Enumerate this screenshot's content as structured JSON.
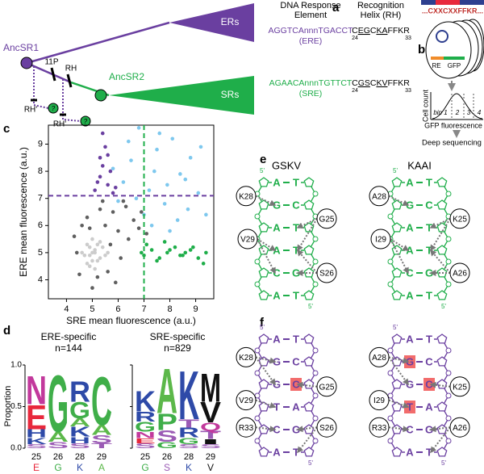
{
  "panel_labels": [
    "a",
    "b",
    "c",
    "d",
    "e",
    "f"
  ],
  "panel_a": {
    "tree": {
      "ancsr1": "AncSR1",
      "ancsr2": "AncSR2",
      "ers": "ERs",
      "srs": "SRs",
      "p11": "11P",
      "rh": "RH",
      "rh_prime": [
        "RH'",
        "RH'"
      ],
      "unknown": [
        "?",
        "?"
      ]
    },
    "headers": [
      [
        "DNA Response",
        "Element"
      ],
      [
        "Recognition",
        "Helix (RH)"
      ]
    ],
    "rows": [
      {
        "element": "AGGTCAnnnTGACCT",
        "element_label": "(ERE)",
        "helix": [
          "C",
          "EG",
          "C",
          "KA",
          "FFKR"
        ],
        "helix_start": "24",
        "helix_end": "33",
        "color": "#6a3fa0"
      },
      {
        "element": "AGAACAnnnTGTTCT",
        "element_label": "(SRE)",
        "helix": [
          "C",
          "GS",
          "C",
          "KV",
          "FFKR"
        ],
        "helix_start": "24",
        "helix_end": "33",
        "color": "#1fae4a"
      }
    ]
  },
  "panel_b": {
    "motif": "...CXXCXXFFKR...",
    "reporter": [
      "RE",
      "GFP"
    ],
    "bins": [
      "bin 1",
      "2",
      "3",
      "4"
    ],
    "y_label": "Cell count",
    "x_label": "GFP fluorescence",
    "step": "Deep sequencing"
  },
  "chart_data": {
    "type": "scatter",
    "x_label": "SRE mean fluorescence (a.u.)",
    "y_label": "ERE mean fluorescence (a.u.)",
    "xlim": [
      3.3,
      9.7
    ],
    "ylim": [
      3.3,
      9.7
    ],
    "xticks": [
      4,
      5,
      6,
      7,
      8,
      9
    ],
    "yticks": [
      4,
      5,
      6,
      7,
      8,
      9
    ],
    "thresholds": {
      "x": 7,
      "y": 7.1,
      "x_color": "#1fae4a",
      "y_color": "#6a3fa0"
    },
    "series": [
      {
        "color": "#5f5f5f",
        "x": [
          4.3,
          4.5,
          4.6,
          5.8,
          6.0,
          6.2,
          5.6,
          5.9,
          6.4,
          6.6,
          6.8,
          5.0,
          5.3,
          4.9,
          5.5,
          6.1,
          6.9,
          5.7,
          4.4,
          5.2,
          6.3,
          7.1,
          5.4,
          4.8
        ],
        "y": [
          5.6,
          4.2,
          6.0,
          6.5,
          5.8,
          6.9,
          4.3,
          3.9,
          5.5,
          6.2,
          5.9,
          3.7,
          6.6,
          5.9,
          6.0,
          4.8,
          6.5,
          5.3,
          5.0,
          4.1,
          6.7,
          5.7,
          6.9,
          6.3
        ]
      },
      {
        "color": "#cccccc",
        "x": [
          4.7,
          4.9,
          5.0,
          5.1,
          5.2,
          5.3,
          4.8,
          5.0,
          5.1,
          5.4,
          5.5,
          4.6,
          4.9,
          5.2,
          5.0,
          5.3,
          4.8,
          5.1,
          5.6,
          4.9
        ],
        "y": [
          4.9,
          5.2,
          4.7,
          5.0,
          5.3,
          4.8,
          4.6,
          5.5,
          5.1,
          5.2,
          4.9,
          5.0,
          4.5,
          4.7,
          5.0,
          5.4,
          5.3,
          4.4,
          5.0,
          4.9
        ]
      },
      {
        "color": "#6a3fa0",
        "x": [
          5.1,
          5.3,
          5.4,
          5.6,
          5.5,
          5.8,
          5.2,
          5.7,
          5.4,
          5.9,
          5.3,
          5.6
        ],
        "y": [
          7.3,
          7.8,
          8.2,
          7.5,
          8.9,
          7.2,
          7.6,
          8.0,
          9.4,
          7.4,
          8.5,
          8.6
        ]
      },
      {
        "color": "#7ec8ee",
        "x": [
          6.2,
          6.5,
          6.8,
          7.2,
          7.5,
          7.8,
          8.1,
          8.4,
          8.8,
          9.1,
          6.0,
          6.4,
          7.0,
          7.4,
          7.9,
          8.3,
          8.7,
          9.2,
          6.7,
          7.6,
          8.0,
          8.6,
          5.8,
          7.3,
          9.4
        ],
        "y": [
          7.6,
          8.4,
          9.6,
          7.3,
          8.8,
          6.8,
          9.2,
          7.9,
          8.5,
          7.2,
          6.9,
          9.1,
          6.4,
          8.0,
          7.5,
          6.2,
          6.6,
          8.9,
          7.0,
          9.4,
          5.8,
          7.7,
          8.1,
          6.0,
          6.4
        ]
      },
      {
        "color": "#1fae4a",
        "x": [
          7.0,
          7.3,
          7.6,
          7.9,
          8.2,
          8.5,
          8.8,
          9.1,
          9.4,
          7.1,
          7.5,
          8.0,
          8.4,
          8.9,
          9.3,
          6.9,
          7.8,
          8.6
        ],
        "y": [
          4.9,
          5.1,
          4.8,
          5.0,
          5.2,
          4.9,
          5.1,
          4.8,
          5.0,
          5.3,
          4.7,
          5.1,
          4.9,
          5.2,
          4.6,
          5.0,
          5.4,
          5.0
        ]
      }
    ]
  },
  "panel_d": {
    "y_label": "Proportion",
    "ylim": [
      0,
      1
    ],
    "yticks": [
      {
        "value": 0,
        "label": "0.0"
      },
      {
        "value": 0.5,
        "label": "0.5"
      },
      {
        "value": 1,
        "label": "1.0"
      }
    ],
    "letter_colors": {
      "A": "#5cb84a",
      "C": "#3fae49",
      "G": "#3fae49",
      "P": "#3fae49",
      "S": "#9b5bb5",
      "T": "#9b5bb5",
      "N": "#c2399c",
      "Q": "#c2399c",
      "E": "#e8283c",
      "D": "#e8283c",
      "K": "#2e4aa8",
      "R": "#2e4aa8",
      "H": "#2e4aa8",
      "M": "#111111",
      "V": "#111111",
      "I": "#111111"
    },
    "logos": [
      {
        "title": "ERE-specific",
        "n": "n=144",
        "positions": [
          "25",
          "26",
          "28",
          "29"
        ],
        "consensus": [
          "E",
          "G",
          "K",
          "A"
        ],
        "columns": [
          [
            {
              "letter": "S",
              "height": 0.05
            },
            {
              "letter": "K",
              "height": 0.08
            },
            {
              "letter": "H",
              "height": 0.1
            },
            {
              "letter": "E",
              "height": 0.3
            },
            {
              "letter": "N",
              "height": 0.35
            }
          ],
          [
            {
              "letter": "S",
              "height": 0.08
            },
            {
              "letter": "A",
              "height": 0.12
            },
            {
              "letter": "G",
              "height": 0.7
            }
          ],
          [
            {
              "letter": "S",
              "height": 0.06
            },
            {
              "letter": "H",
              "height": 0.08
            },
            {
              "letter": "K",
              "height": 0.12
            },
            {
              "letter": "A",
              "height": 0.1
            },
            {
              "letter": "G",
              "height": 0.2
            },
            {
              "letter": "R",
              "height": 0.25
            }
          ],
          [
            {
              "letter": "T",
              "height": 0.06
            },
            {
              "letter": "S",
              "height": 0.1
            },
            {
              "letter": "A",
              "height": 0.12
            },
            {
              "letter": "C",
              "height": 0.6
            }
          ]
        ]
      },
      {
        "title": "SRE-specific",
        "n": "n=829",
        "positions": [
          "25",
          "26",
          "28",
          "29"
        ],
        "consensus": [
          "G",
          "S",
          "K",
          "V"
        ],
        "columns": [
          [
            {
              "letter": "S",
              "height": 0.06
            },
            {
              "letter": "E",
              "height": 0.06
            },
            {
              "letter": "N",
              "height": 0.08
            },
            {
              "letter": "G",
              "height": 0.12
            },
            {
              "letter": "R",
              "height": 0.12
            },
            {
              "letter": "K",
              "height": 0.25
            }
          ],
          [
            {
              "letter": "G",
              "height": 0.08
            },
            {
              "letter": "S",
              "height": 0.14
            },
            {
              "letter": "P",
              "height": 0.2
            },
            {
              "letter": "A",
              "height": 0.55
            }
          ],
          [
            {
              "letter": "S",
              "height": 0.05
            },
            {
              "letter": "G",
              "height": 0.08
            },
            {
              "letter": "R",
              "height": 0.12
            },
            {
              "letter": "T",
              "height": 0.1
            },
            {
              "letter": "K",
              "height": 0.6
            }
          ],
          [
            {
              "letter": "S",
              "height": 0.05
            },
            {
              "letter": "I",
              "height": 0.06
            },
            {
              "letter": "T",
              "height": 0.1
            },
            {
              "letter": "Q",
              "height": 0.1
            },
            {
              "letter": "V",
              "height": 0.25
            },
            {
              "letter": "M",
              "height": 0.35
            }
          ]
        ]
      }
    ]
  },
  "panel_e": {
    "color": "#1fae4a",
    "strand_end": "5'",
    "ladders": [
      {
        "title": "GSKV",
        "pairs": [
          [
            "A",
            "T"
          ],
          [
            "G",
            "C"
          ],
          [
            "A",
            "T"
          ],
          [
            "A",
            "T"
          ],
          [
            "C",
            "G"
          ],
          [
            "A",
            "T"
          ]
        ],
        "residues": [
          "K28",
          "V29",
          "G25",
          "S26"
        ]
      },
      {
        "title": "KAAI",
        "pairs": [
          [
            "A",
            "T"
          ],
          [
            "G",
            "C"
          ],
          [
            "A",
            "T"
          ],
          [
            "A",
            "T"
          ],
          [
            "C",
            "G"
          ],
          [
            "A",
            "T"
          ]
        ],
        "residues": [
          "A28",
          "I29",
          "K25",
          "A26"
        ]
      }
    ]
  },
  "panel_f": {
    "color": "#6a3fa0",
    "strand_end": "5'",
    "ladders": [
      {
        "pairs": [
          [
            "A",
            "T"
          ],
          [
            "G",
            "C"
          ],
          [
            "G",
            "C"
          ],
          [
            "T",
            "A"
          ],
          [
            "C",
            "G"
          ],
          [
            "A",
            "T"
          ]
        ],
        "residues": [
          "K28",
          "V29",
          "R33",
          "G25",
          "S26"
        ]
      },
      {
        "pairs": [
          [
            "A",
            "T"
          ],
          [
            "G",
            "C"
          ],
          [
            "G",
            "C"
          ],
          [
            "T",
            "A"
          ],
          [
            "C",
            "G"
          ],
          [
            "A",
            "T"
          ]
        ],
        "residues": [
          "A28",
          "I29",
          "R33",
          "K25",
          "A26"
        ]
      }
    ]
  }
}
